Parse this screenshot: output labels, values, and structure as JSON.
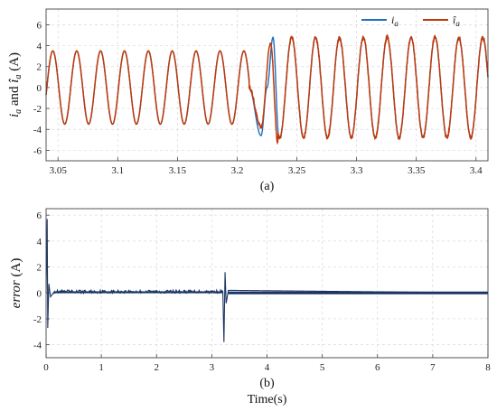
{
  "colors": {
    "measured": "#1f6fbf",
    "estimated": "#c0390b",
    "error": "#1a3563",
    "grid": "#d9d9d9",
    "axis": "#444444"
  },
  "chart_data": [
    {
      "type": "line",
      "caption": "(a)",
      "ylabel_parts": [
        "i",
        "a",
        "and",
        "î",
        "a",
        "(A)"
      ],
      "xlim": [
        3.04,
        3.41
      ],
      "ylim": [
        -7,
        7.5
      ],
      "xticks": [
        "3.05",
        "3.1",
        "3.15",
        "3.2",
        "3.25",
        "3.3",
        "3.35",
        "3.4"
      ],
      "xtick_values": [
        3.05,
        3.1,
        3.15,
        3.2,
        3.25,
        3.3,
        3.35,
        3.4
      ],
      "yticks": [
        "-6",
        "-4",
        "-2",
        "0",
        "2",
        "4",
        "6"
      ],
      "ytick_values": [
        -6,
        -4,
        -2,
        0,
        2,
        4,
        6
      ],
      "grid": true,
      "legend_position": "top-right",
      "series": [
        {
          "name": "i_a",
          "legend_main": "i",
          "legend_sub": "a",
          "hat": false,
          "color_key": "measured",
          "frequency_hz": 50,
          "amplitude_before": 3.5,
          "amplitude_after": 4.8,
          "step_time": 3.21,
          "x": [
            3.04,
            3.21,
            3.22,
            3.225,
            3.23,
            3.235,
            3.41
          ],
          "y": [
            0,
            0,
            -4.6,
            0,
            4.8,
            -4.8,
            0
          ]
        },
        {
          "name": "î_a",
          "legend_main": "i",
          "legend_sub": "a",
          "hat": true,
          "color_key": "estimated",
          "frequency_hz": 50,
          "amplitude_before": 3.5,
          "amplitude_after": 4.8,
          "step_time": 3.21,
          "x": [
            3.04,
            3.21,
            3.22,
            3.228,
            3.234,
            3.41
          ],
          "y": [
            0,
            0,
            -3.8,
            4.3,
            -5.3,
            0
          ]
        }
      ]
    },
    {
      "type": "line",
      "caption": "(b)",
      "ylabel": "error (A)",
      "xlabel": "Time(s)",
      "xlim": [
        0,
        8
      ],
      "ylim": [
        -5,
        6.5
      ],
      "xticks": [
        "0",
        "1",
        "2",
        "3",
        "4",
        "5",
        "6",
        "7",
        "8"
      ],
      "xtick_values": [
        0,
        1,
        2,
        3,
        4,
        5,
        6,
        7,
        8
      ],
      "yticks": [
        "-4",
        "-2",
        "0",
        "2",
        "4",
        "6"
      ],
      "ytick_values": [
        -4,
        -2,
        0,
        2,
        4,
        6
      ],
      "grid": true,
      "series": [
        {
          "name": "error",
          "color_key": "error",
          "x": [
            0,
            0.02,
            0.03,
            0.05,
            0.08,
            0.15,
            3.2,
            3.22,
            3.24,
            3.26,
            3.3,
            8
          ],
          "y": [
            0,
            5.7,
            -2.7,
            0.7,
            -0.3,
            0.1,
            0.1,
            -3.8,
            1.6,
            -0.8,
            0.2,
            0
          ]
        }
      ]
    }
  ]
}
